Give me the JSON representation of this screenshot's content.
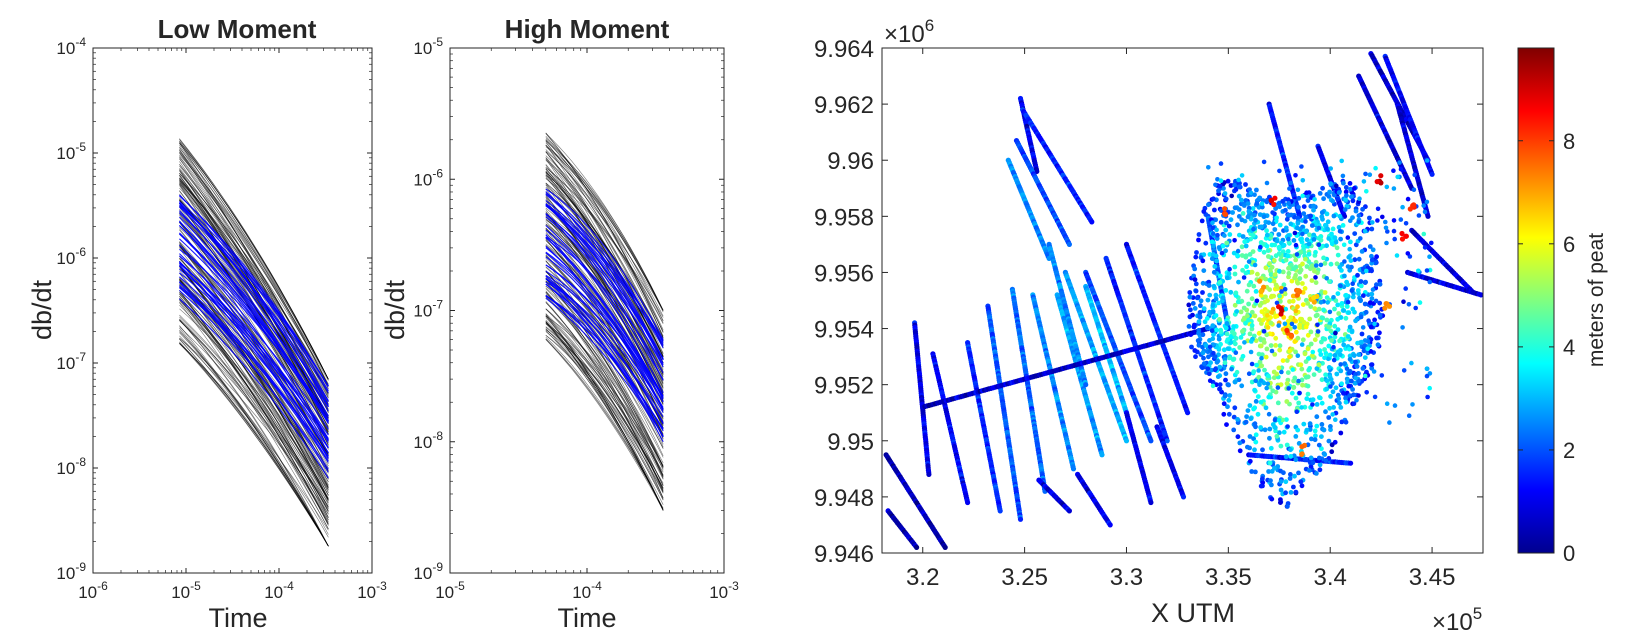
{
  "chart_data": [
    {
      "type": "line",
      "title": "Low Moment",
      "xlabel": "Time",
      "ylabel": "db/dt",
      "xscale": "log",
      "yscale": "log",
      "xlim": [
        1e-06,
        0.001
      ],
      "ylim": [
        1e-09,
        0.0001
      ],
      "x_tick_labels": [
        {
          "base": "10",
          "exp": "-6"
        },
        {
          "base": "10",
          "exp": "-5"
        },
        {
          "base": "10",
          "exp": "-4"
        },
        {
          "base": "10",
          "exp": "-3"
        }
      ],
      "y_tick_labels": [
        {
          "base": "10",
          "exp": "-9"
        },
        {
          "base": "10",
          "exp": "-8"
        },
        {
          "base": "10",
          "exp": "-7"
        },
        {
          "base": "10",
          "exp": "-6"
        },
        {
          "base": "10",
          "exp": "-5"
        },
        {
          "base": "10",
          "exp": "-4"
        }
      ],
      "time_range": [
        8.5e-06,
        0.00034
      ],
      "envelope": {
        "start": [
          1.5e-07,
          1.4e-05
        ],
        "end": [
          1.8e-09,
          7e-08
        ]
      },
      "representative_curves": {
        "start": [
          4e-07,
          4e-06
        ],
        "end": [
          8e-09,
          6e-08
        ]
      },
      "series": [
        {
          "style": "ensemble",
          "color": "#000000",
          "count": 180
        },
        {
          "style": "highlighted",
          "color": "#0000ff",
          "count": 40
        }
      ]
    },
    {
      "type": "line",
      "title": "High Moment",
      "xlabel": "Time",
      "ylabel": "db/dt",
      "xscale": "log",
      "yscale": "log",
      "xlim": [
        1e-05,
        0.001
      ],
      "ylim": [
        1e-09,
        1e-05
      ],
      "x_tick_labels": [
        {
          "base": "10",
          "exp": "-5"
        },
        {
          "base": "10",
          "exp": "-4"
        },
        {
          "base": "10",
          "exp": "-3"
        }
      ],
      "y_tick_labels": [
        {
          "base": "10",
          "exp": "-9"
        },
        {
          "base": "10",
          "exp": "-8"
        },
        {
          "base": "10",
          "exp": "-7"
        },
        {
          "base": "10",
          "exp": "-6"
        },
        {
          "base": "10",
          "exp": "-5"
        }
      ],
      "time_range": [
        5e-05,
        0.00036
      ],
      "envelope": {
        "start": [
          6e-08,
          2.5e-06
        ],
        "end": [
          3e-09,
          1e-07
        ]
      },
      "representative_curves": {
        "start": [
          1.2e-07,
          9e-07
        ],
        "end": [
          1e-08,
          6e-08
        ]
      },
      "series": [
        {
          "style": "ensemble",
          "color": "#000000",
          "count": 180
        },
        {
          "style": "highlighted",
          "color": "#0000ff",
          "count": 40
        }
      ]
    },
    {
      "type": "scatter",
      "xlabel": "X UTM",
      "x_multiplier": {
        "base": "×10",
        "exp": "5"
      },
      "y_multiplier": {
        "base": "×10",
        "exp": "6"
      },
      "xlim": [
        3.18,
        3.475
      ],
      "ylim": [
        9.946,
        9.964
      ],
      "x_ticks": [
        "3.2",
        "3.25",
        "3.3",
        "3.35",
        "3.4",
        "3.45"
      ],
      "y_ticks": [
        "9.946",
        "9.948",
        "9.95",
        "9.952",
        "9.954",
        "9.956",
        "9.958",
        "9.96",
        "9.962",
        "9.964"
      ],
      "colormap": "jet",
      "colorbar": {
        "label": "meters of peat",
        "range": [
          0,
          9.8
        ],
        "ticks": [
          "0",
          "2",
          "4",
          "6",
          "8"
        ]
      },
      "survey_lines": [
        {
          "from": [
            3.182,
            9.9495
          ],
          "to": [
            3.211,
            9.9462
          ],
          "peat": 0.5
        },
        {
          "from": [
            3.183,
            9.9475
          ],
          "to": [
            3.197,
            9.9462
          ],
          "peat": 0.5
        },
        {
          "from": [
            3.196,
            9.9542
          ],
          "to": [
            3.203,
            9.9488
          ],
          "peat": 1.0
        },
        {
          "from": [
            3.205,
            9.9531
          ],
          "to": [
            3.222,
            9.9478
          ],
          "peat": 1.2
        },
        {
          "from": [
            3.222,
            9.9535
          ],
          "to": [
            3.238,
            9.9475
          ],
          "peat": 1.5
        },
        {
          "from": [
            3.232,
            9.9548
          ],
          "to": [
            3.248,
            9.9472
          ],
          "peat": 2.0
        },
        {
          "from": [
            3.244,
            9.9554
          ],
          "to": [
            3.26,
            9.9482
          ],
          "peat": 2.2
        },
        {
          "from": [
            3.254,
            9.9552
          ],
          "to": [
            3.274,
            9.949
          ],
          "peat": 2.5
        },
        {
          "from": [
            3.266,
            9.9552
          ],
          "to": [
            3.288,
            9.9495
          ],
          "peat": 2.8
        },
        {
          "from": [
            3.248,
            9.9622
          ],
          "to": [
            3.256,
            9.9596
          ],
          "peat": 1.0
        },
        {
          "from": [
            3.249,
            9.9618
          ],
          "to": [
            3.283,
            9.9578
          ],
          "peat": 1.5
        },
        {
          "from": [
            3.246,
            9.9607
          ],
          "to": [
            3.272,
            9.957
          ],
          "peat": 2.0
        },
        {
          "from": [
            3.242,
            9.96
          ],
          "to": [
            3.262,
            9.9565
          ],
          "peat": 2.5
        },
        {
          "from": [
            3.262,
            9.957
          ],
          "to": [
            3.28,
            9.952
          ],
          "peat": 2.5
        },
        {
          "from": [
            3.27,
            9.956
          ],
          "to": [
            3.3,
            9.95
          ],
          "peat": 2.8
        },
        {
          "from": [
            3.28,
            9.956
          ],
          "to": [
            3.312,
            9.95
          ],
          "peat": 2.0
        },
        {
          "from": [
            3.29,
            9.9565
          ],
          "to": [
            3.32,
            9.95
          ],
          "peat": 1.5
        },
        {
          "from": [
            3.3,
            9.957
          ],
          "to": [
            3.33,
            9.951
          ],
          "peat": 1.5
        },
        {
          "from": [
            3.28,
            9.9555
          ],
          "to": [
            3.3,
            9.951
          ],
          "peat": 3.0
        },
        {
          "from": [
            3.2,
            9.9512
          ],
          "to": [
            3.34,
            9.954
          ],
          "peat": 0.8
        },
        {
          "from": [
            3.257,
            9.9486
          ],
          "to": [
            3.272,
            9.9475
          ],
          "peat": 1.0
        },
        {
          "from": [
            3.276,
            9.9488
          ],
          "to": [
            3.292,
            9.947
          ],
          "peat": 1.0
        },
        {
          "from": [
            3.3,
            9.951
          ],
          "to": [
            3.312,
            9.9478
          ],
          "peat": 1.0
        },
        {
          "from": [
            3.315,
            9.9505
          ],
          "to": [
            3.328,
            9.948
          ],
          "peat": 1.0
        },
        {
          "from": [
            3.34,
            9.958
          ],
          "to": [
            3.35,
            9.954
          ],
          "peat": 2.0
        },
        {
          "from": [
            3.37,
            9.962
          ],
          "to": [
            3.385,
            9.958
          ],
          "peat": 1.5
        },
        {
          "from": [
            3.394,
            9.9605
          ],
          "to": [
            3.407,
            9.958
          ],
          "peat": 1.0
        },
        {
          "from": [
            3.414,
            9.963
          ],
          "to": [
            3.44,
            9.959
          ],
          "peat": 0.8
        },
        {
          "from": [
            3.42,
            9.9638
          ],
          "to": [
            3.448,
            9.96
          ],
          "peat": 0.8
        },
        {
          "from": [
            3.427,
            9.9637
          ],
          "to": [
            3.45,
            9.9595
          ],
          "peat": 1.2
        },
        {
          "from": [
            3.433,
            9.962
          ],
          "to": [
            3.448,
            9.958
          ],
          "peat": 0.8
        },
        {
          "from": [
            3.438,
            9.956
          ],
          "to": [
            3.474,
            9.9552
          ],
          "peat": 1.0
        },
        {
          "from": [
            3.44,
            9.9575
          ],
          "to": [
            3.47,
            9.9553
          ],
          "peat": 0.8
        },
        {
          "from": [
            3.36,
            9.9495
          ],
          "to": [
            3.41,
            9.9492
          ],
          "peat": 1.5
        }
      ],
      "peat_body": {
        "center": [
          3.378,
          9.9545
        ],
        "radius": [
          0.048,
          0.0055
        ],
        "peak_peat": 8.5
      },
      "hotspots": [
        {
          "x": 3.372,
          "y": 9.9585,
          "peat": 8.5
        },
        {
          "x": 3.385,
          "y": 9.9553,
          "peat": 7.5
        },
        {
          "x": 3.376,
          "y": 9.9546,
          "peat": 8.8
        },
        {
          "x": 3.38,
          "y": 9.9538,
          "peat": 8.0
        },
        {
          "x": 3.366,
          "y": 9.9555,
          "peat": 7.0
        },
        {
          "x": 3.392,
          "y": 9.955,
          "peat": 6.8
        },
        {
          "x": 3.436,
          "y": 9.9572,
          "peat": 8.5
        },
        {
          "x": 3.424,
          "y": 9.9593,
          "peat": 9.0
        },
        {
          "x": 3.44,
          "y": 9.9583,
          "peat": 8.2
        },
        {
          "x": 3.386,
          "y": 9.9497,
          "peat": 7.5
        },
        {
          "x": 3.349,
          "y": 9.9582,
          "peat": 8.0
        },
        {
          "x": 3.428,
          "y": 9.9548,
          "peat": 7.2
        }
      ]
    }
  ]
}
